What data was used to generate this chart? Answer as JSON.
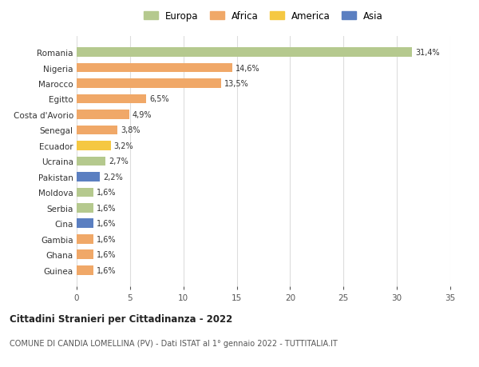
{
  "countries": [
    "Romania",
    "Nigeria",
    "Marocco",
    "Egitto",
    "Costa d'Avorio",
    "Senegal",
    "Ecuador",
    "Ucraina",
    "Pakistan",
    "Moldova",
    "Serbia",
    "Cina",
    "Gambia",
    "Ghana",
    "Guinea"
  ],
  "values": [
    31.4,
    14.6,
    13.5,
    6.5,
    4.9,
    3.8,
    3.2,
    2.7,
    2.2,
    1.6,
    1.6,
    1.6,
    1.6,
    1.6,
    1.6
  ],
  "labels": [
    "31,4%",
    "14,6%",
    "13,5%",
    "6,5%",
    "4,9%",
    "3,8%",
    "3,2%",
    "2,7%",
    "2,2%",
    "1,6%",
    "1,6%",
    "1,6%",
    "1,6%",
    "1,6%",
    "1,6%"
  ],
  "colors": [
    "#b5c98e",
    "#f0a868",
    "#f0a868",
    "#f0a868",
    "#f0a868",
    "#f0a868",
    "#f5c842",
    "#b5c98e",
    "#5b7fc1",
    "#b5c98e",
    "#b5c98e",
    "#5b7fc1",
    "#f0a868",
    "#f0a868",
    "#f0a868"
  ],
  "legend": {
    "labels": [
      "Europa",
      "Africa",
      "America",
      "Asia"
    ],
    "colors": [
      "#b5c98e",
      "#f0a868",
      "#f5c842",
      "#5b7fc1"
    ]
  },
  "title": "Cittadini Stranieri per Cittadinanza - 2022",
  "subtitle": "COMUNE DI CANDIA LOMELLINA (PV) - Dati ISTAT al 1° gennaio 2022 - TUTTITALIA.IT",
  "xlim": [
    0,
    35
  ],
  "xticks": [
    0,
    5,
    10,
    15,
    20,
    25,
    30,
    35
  ],
  "background_color": "#ffffff",
  "grid_color": "#dddddd",
  "bar_height": 0.6
}
